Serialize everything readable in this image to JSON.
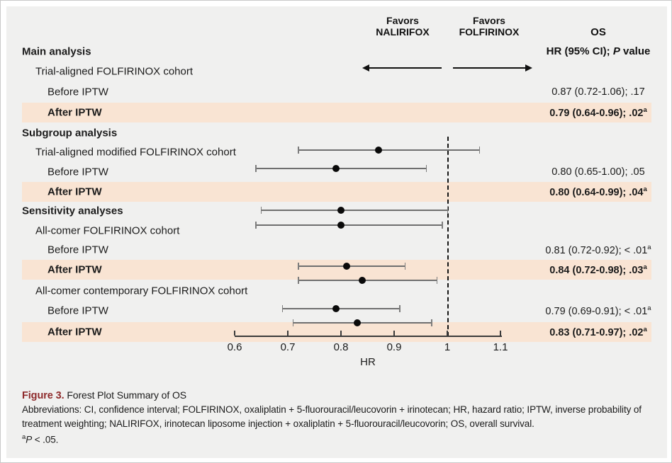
{
  "header": {
    "favors_left": {
      "line1": "Favors",
      "line2": "NALIRIFOX"
    },
    "favors_right": {
      "line1": "Favors",
      "line2": "FOLFIRINOX"
    },
    "outcome": "OS",
    "stat": {
      "prefix": "HR (95% CI); ",
      "italic": "P",
      "suffix": " value"
    }
  },
  "chart_data": {
    "type": "forest",
    "xlabel": "HR",
    "axis": {
      "min": 0.6,
      "max": 1.1,
      "tick_labels": [
        "0.6",
        "0.7",
        "0.8",
        "0.9",
        "1",
        "1.1"
      ],
      "tick_values": [
        0.6,
        0.7,
        0.8,
        0.9,
        1.0,
        1.1
      ],
      "reference_line": 1.0
    },
    "favors": {
      "left_of_reference": "NALIRIFOX",
      "right_of_reference": "FOLFIRINOX"
    },
    "rows": [
      {
        "label": "Main analysis",
        "style": "section"
      },
      {
        "label": "Trial-aligned FOLFIRINOX cohort",
        "style": "cohort"
      },
      {
        "label": "Before IPTW",
        "style": "item",
        "highlight": false,
        "hr": 0.87,
        "ci": [
          0.72,
          1.06
        ],
        "value": "0.87 (0.72-1.06); .17",
        "sup": ""
      },
      {
        "label": "After IPTW",
        "style": "item",
        "highlight": true,
        "hr": 0.79,
        "ci": [
          0.64,
          0.96
        ],
        "value": "0.79 (0.64-0.96); .02",
        "sup": "a"
      },
      {
        "label": "Subgroup analysis",
        "style": "section"
      },
      {
        "label": "Trial-aligned modified FOLFIRINOX cohort",
        "style": "cohort"
      },
      {
        "label": "Before IPTW",
        "style": "item",
        "highlight": false,
        "hr": 0.8,
        "ci": [
          0.65,
          1.0
        ],
        "value": "0.80 (0.65-1.00); .05",
        "sup": ""
      },
      {
        "label": "After IPTW",
        "style": "item",
        "highlight": true,
        "hr": 0.8,
        "ci": [
          0.64,
          0.99
        ],
        "value": "0.80 (0.64-0.99); .04",
        "sup": "a"
      },
      {
        "label": "Sensitivity analyses",
        "style": "section"
      },
      {
        "label": "All-comer FOLFIRINOX cohort",
        "style": "cohort"
      },
      {
        "label": "Before IPTW",
        "style": "item",
        "highlight": false,
        "hr": 0.81,
        "ci": [
          0.72,
          0.92
        ],
        "value": "0.81 (0.72-0.92); < .01",
        "sup": "a"
      },
      {
        "label": "After IPTW",
        "style": "item",
        "highlight": true,
        "hr": 0.84,
        "ci": [
          0.72,
          0.98
        ],
        "value": "0.84 (0.72-0.98); .03",
        "sup": "a"
      },
      {
        "label": "All-comer contemporary FOLFIRINOX cohort",
        "style": "cohort"
      },
      {
        "label": "Before IPTW",
        "style": "item",
        "highlight": false,
        "hr": 0.79,
        "ci": [
          0.69,
          0.91
        ],
        "value": "0.79 (0.69-0.91); < .01",
        "sup": "a"
      },
      {
        "label": "After IPTW",
        "style": "item",
        "highlight": true,
        "hr": 0.83,
        "ci": [
          0.71,
          0.97
        ],
        "value": "0.83 (0.71-0.97); .02",
        "sup": "a"
      }
    ]
  },
  "caption": {
    "label": "Figure 3.",
    "title": " Forest Plot Summary of OS",
    "abbreviations": "Abbreviations: CI, confidence interval; FOLFIRINOX, oxaliplatin + 5-fluorouracil/leucovorin + irinotecan; HR, hazard ratio; IPTW, inverse probability of treatment weighting; NALIRIFOX, irinotecan liposome injection + oxaliplatin + 5-fluorouracil/leucovorin; OS, overall survival.",
    "footnote": {
      "sup": "a",
      "italic": "P",
      "text": " < .05."
    }
  },
  "colors": {
    "highlight_band": "#f9e4d3",
    "figure_label": "#8e2a2b",
    "panel_background": "#f0f0ef",
    "point": "#0a0a0a",
    "ci_line": "#6f6f6f"
  }
}
